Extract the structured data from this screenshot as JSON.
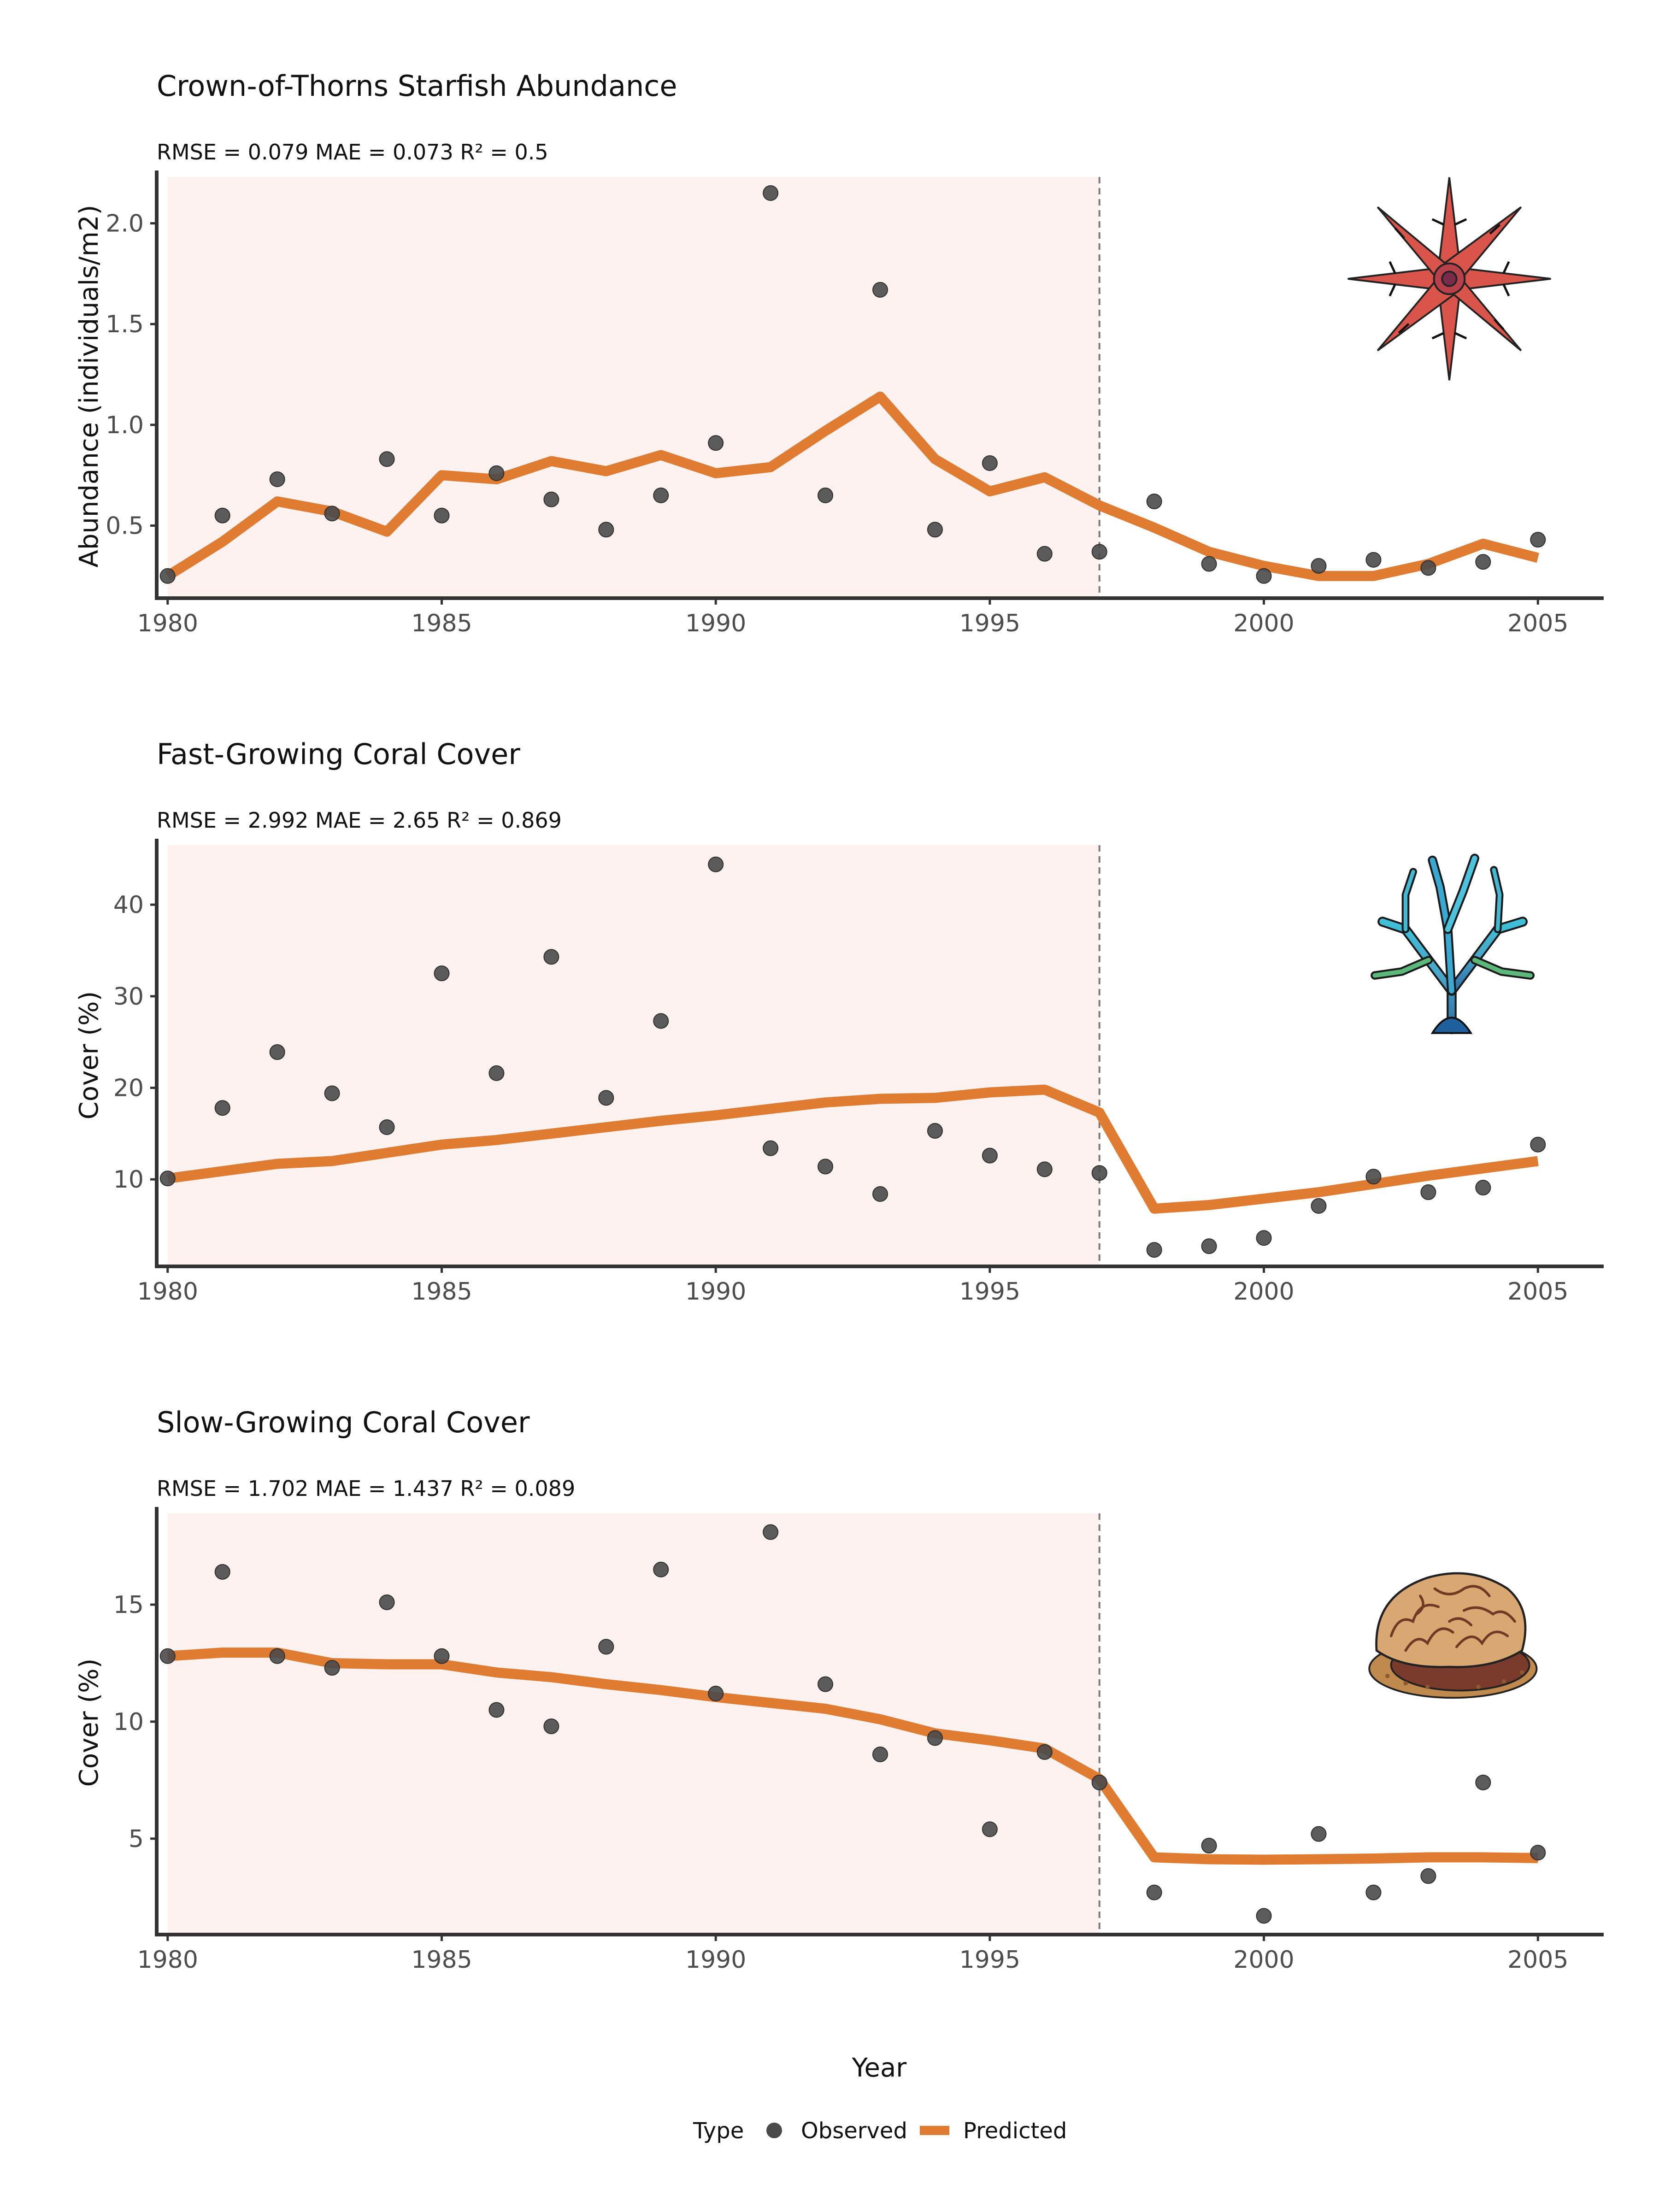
{
  "chart_data": [
    {
      "type": "line",
      "title": "Crown-of-Thorns Starfish Abundance",
      "subtitle": "RMSE = 0.079 MAE = 0.073 R² = 0.5",
      "xlabel": "",
      "ylabel": "Abundance (individuals/m2)",
      "xlim": [
        1979.8,
        2006.2
      ],
      "ylim": [
        0.14,
        2.23
      ],
      "x_ticks": [
        1980,
        1985,
        1990,
        1995,
        2000,
        2005
      ],
      "y_ticks": [
        0.5,
        1.0,
        1.5,
        2.0
      ],
      "y_tick_labels": [
        "0.5",
        "1.0",
        "1.5",
        "2.0"
      ],
      "shaded_range": [
        1980,
        1997
      ],
      "vline_x": 1997,
      "icon": "starfish-icon",
      "series": [
        {
          "name": "Observed",
          "x": [
            1980,
            1981,
            1982,
            1983,
            1984,
            1985,
            1986,
            1987,
            1988,
            1989,
            1990,
            1991,
            1992,
            1993,
            1994,
            1995,
            1996,
            1997,
            1998,
            1999,
            2000,
            2001,
            2002,
            2003,
            2004,
            2005
          ],
          "values": [
            0.25,
            0.55,
            0.73,
            0.56,
            0.83,
            0.55,
            0.76,
            0.63,
            0.48,
            0.65,
            0.91,
            2.15,
            0.65,
            1.67,
            0.48,
            0.81,
            0.36,
            0.37,
            0.62,
            0.31,
            0.25,
            0.3,
            0.33,
            0.29,
            0.32,
            0.43
          ]
        },
        {
          "name": "Predicted",
          "x": [
            1980,
            1981,
            1982,
            1983,
            1984,
            1985,
            1986,
            1987,
            1988,
            1989,
            1990,
            1991,
            1992,
            1993,
            1994,
            1995,
            1996,
            1997,
            1998,
            1999,
            2000,
            2001,
            2002,
            2003,
            2004,
            2005
          ],
          "values": [
            0.25,
            0.42,
            0.62,
            0.57,
            0.47,
            0.75,
            0.73,
            0.82,
            0.77,
            0.85,
            0.76,
            0.79,
            0.97,
            1.14,
            0.83,
            0.67,
            0.74,
            0.6,
            0.49,
            0.37,
            0.3,
            0.25,
            0.25,
            0.31,
            0.41,
            0.34
          ]
        }
      ]
    },
    {
      "type": "line",
      "title": "Fast-Growing Coral Cover",
      "subtitle": "RMSE = 2.992 MAE = 2.65 R² = 0.869",
      "xlabel": "",
      "ylabel": "Cover (%)",
      "xlim": [
        1979.8,
        2006.2
      ],
      "ylim": [
        0.5,
        46.5
      ],
      "x_ticks": [
        1980,
        1985,
        1990,
        1995,
        2000,
        2005
      ],
      "y_ticks": [
        10,
        20,
        30,
        40
      ],
      "y_tick_labels": [
        "10",
        "20",
        "30",
        "40"
      ],
      "shaded_range": [
        1980,
        1997
      ],
      "vline_x": 1997,
      "icon": "branching-coral-icon",
      "series": [
        {
          "name": "Observed",
          "x": [
            1980,
            1981,
            1982,
            1983,
            1984,
            1985,
            1986,
            1987,
            1988,
            1989,
            1990,
            1991,
            1992,
            1993,
            1994,
            1995,
            1996,
            1997,
            1998,
            1999,
            2000,
            2001,
            2002,
            2003,
            2004,
            2005
          ],
          "values": [
            10.1,
            17.8,
            23.9,
            19.4,
            15.7,
            32.5,
            21.6,
            34.3,
            18.9,
            27.3,
            44.4,
            13.4,
            11.4,
            8.4,
            15.3,
            12.6,
            11.1,
            10.7,
            2.3,
            2.7,
            3.6,
            7.1,
            10.3,
            8.6,
            9.1,
            13.8
          ]
        },
        {
          "name": "Predicted",
          "x": [
            1980,
            1981,
            1982,
            1983,
            1984,
            1985,
            1986,
            1987,
            1988,
            1989,
            1990,
            1991,
            1992,
            1993,
            1994,
            1995,
            1996,
            1997,
            1998,
            1999,
            2000,
            2001,
            2002,
            2003,
            2004,
            2005
          ],
          "values": [
            10.1,
            10.9,
            11.7,
            12.0,
            12.9,
            13.8,
            14.3,
            15.0,
            15.7,
            16.4,
            17.0,
            17.7,
            18.4,
            18.8,
            18.9,
            19.5,
            19.8,
            17.3,
            6.8,
            7.2,
            7.9,
            8.6,
            9.5,
            10.4,
            11.2,
            12.0
          ]
        }
      ]
    },
    {
      "type": "line",
      "title": "Slow-Growing Coral Cover",
      "subtitle": "RMSE = 1.702 MAE = 1.437 R² = 0.089",
      "xlabel": "Year",
      "ylabel": "Cover (%)",
      "xlim": [
        1979.8,
        2006.2
      ],
      "ylim": [
        0.9,
        18.9
      ],
      "x_ticks": [
        1980,
        1985,
        1990,
        1995,
        2000,
        2005
      ],
      "y_ticks": [
        5,
        10,
        15
      ],
      "y_tick_labels": [
        "5",
        "10",
        "15"
      ],
      "shaded_range": [
        1980,
        1997
      ],
      "vline_x": 1997,
      "icon": "brain-coral-icon",
      "series": [
        {
          "name": "Observed",
          "x": [
            1980,
            1981,
            1982,
            1983,
            1984,
            1985,
            1986,
            1987,
            1988,
            1989,
            1990,
            1991,
            1992,
            1993,
            1994,
            1995,
            1996,
            1997,
            1998,
            1999,
            2000,
            2001,
            2002,
            2003,
            2004,
            2005
          ],
          "values": [
            12.8,
            16.4,
            12.8,
            12.3,
            15.1,
            12.8,
            10.5,
            9.8,
            13.2,
            16.5,
            11.2,
            18.1,
            11.6,
            8.6,
            9.3,
            5.4,
            8.7,
            7.4,
            2.7,
            4.7,
            1.7,
            5.2,
            2.7,
            3.4,
            7.4,
            4.4
          ]
        },
        {
          "name": "Predicted",
          "x": [
            1980,
            1981,
            1982,
            1983,
            1984,
            1985,
            1986,
            1987,
            1988,
            1989,
            1990,
            1991,
            1992,
            1993,
            1994,
            1995,
            1996,
            1997,
            1998,
            1999,
            2000,
            2001,
            2002,
            2003,
            2004,
            2005
          ],
          "values": [
            12.8,
            12.95,
            12.95,
            12.5,
            12.45,
            12.45,
            12.1,
            11.9,
            11.6,
            11.35,
            11.05,
            10.8,
            10.55,
            10.1,
            9.5,
            9.2,
            8.85,
            7.55,
            4.2,
            4.12,
            4.1,
            4.12,
            4.15,
            4.2,
            4.2,
            4.17
          ]
        }
      ]
    }
  ],
  "legend": {
    "title": "Type",
    "items": [
      {
        "label": "Observed",
        "symbol": "point"
      },
      {
        "label": "Predicted",
        "symbol": "line"
      }
    ]
  },
  "colors": {
    "observed_point": "#4a4a4a",
    "predicted_line": "#e07b32",
    "shade": "#fdf2f0",
    "vline": "#7a7a7a",
    "axis": "#333333"
  }
}
